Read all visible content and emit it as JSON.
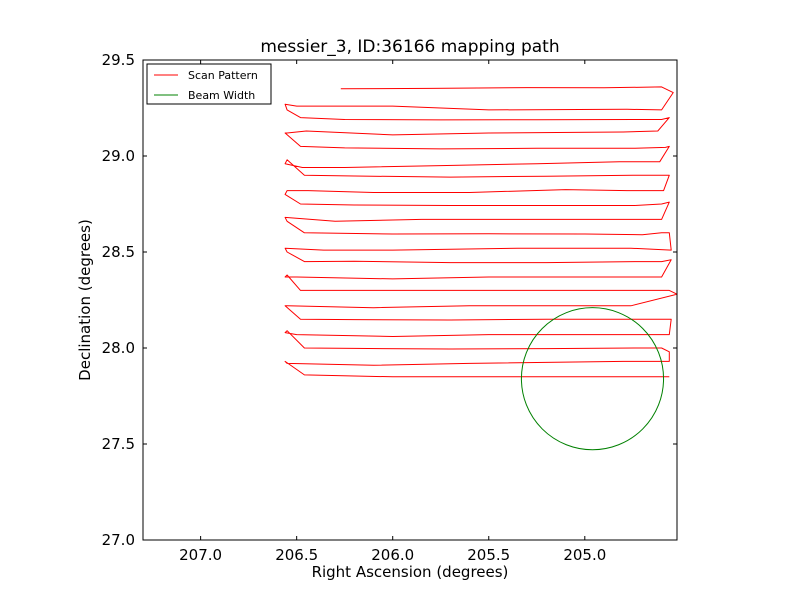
{
  "chart_data": {
    "type": "line",
    "title": "messier_3, ID:36166 mapping path",
    "xlabel": "Right Ascension (degrees)",
    "ylabel": "Declination (degrees)",
    "xlim": [
      207.3,
      204.52
    ],
    "ylim": [
      27.0,
      29.5
    ],
    "x_inverted": true,
    "xticks": [
      207.0,
      206.5,
      206.0,
      205.5,
      205.0
    ],
    "xtick_labels": [
      "207.0",
      "206.5",
      "206.0",
      "205.5",
      "205.0"
    ],
    "yticks": [
      27.0,
      27.5,
      28.0,
      28.5,
      29.0,
      29.5
    ],
    "ytick_labels": [
      "27.0",
      "27.5",
      "28.0",
      "28.5",
      "29.0",
      "29.5"
    ],
    "grid": false,
    "legend": {
      "location": "upper-left",
      "entries": [
        {
          "label": "Scan Pattern",
          "color": "#ff0000"
        },
        {
          "label": "Beam Width",
          "color": "#008000"
        }
      ]
    },
    "series": [
      {
        "name": "Scan Pattern",
        "color": "#ff0000",
        "x": [
          206.27,
          205.8,
          205.3,
          204.9,
          204.6,
          204.54,
          204.6,
          204.78,
          205.5,
          206.0,
          206.5,
          206.56,
          206.55,
          206.48,
          206.25,
          205.75,
          205.25,
          204.75,
          204.6,
          204.56,
          204.62,
          204.8,
          205.5,
          206.0,
          206.45,
          206.55,
          206.56,
          206.48,
          206.25,
          205.75,
          205.25,
          204.75,
          204.58,
          204.56,
          204.61,
          204.82,
          205.25,
          205.75,
          206.25,
          206.47,
          206.56,
          206.55,
          206.46,
          206.2,
          205.7,
          205.2,
          204.75,
          204.62,
          204.56,
          204.59,
          204.78,
          205.1,
          205.6,
          206.1,
          206.44,
          206.55,
          206.56,
          206.48,
          206.2,
          205.7,
          205.2,
          204.74,
          204.6,
          204.56,
          204.6,
          204.8,
          205.35,
          205.85,
          206.3,
          206.56,
          206.55,
          206.46,
          206.0,
          205.5,
          205.0,
          204.7,
          204.6,
          204.56,
          204.55,
          204.76,
          205.35,
          206.0,
          206.36,
          206.56,
          206.55,
          206.46,
          206.2,
          205.7,
          205.2,
          204.74,
          204.6,
          204.55,
          204.6,
          204.8,
          205.5,
          206.0,
          206.5,
          206.56,
          206.55,
          206.48,
          206.2,
          205.7,
          205.2,
          204.74,
          204.6,
          204.56,
          204.52,
          204.76,
          205.1,
          205.6,
          206.1,
          206.55,
          206.56,
          206.48,
          206.2,
          205.7,
          205.2,
          204.74,
          204.58,
          204.55,
          204.56,
          204.8,
          205.5,
          206.0,
          206.5,
          206.56,
          206.55,
          206.46,
          206.2,
          205.7,
          205.2,
          204.74,
          204.6,
          204.56,
          204.56,
          204.8,
          205.6,
          206.1,
          206.55,
          206.56,
          206.46,
          206.0,
          205.5,
          205.0,
          204.6,
          204.56
        ],
        "y": [
          29.35,
          29.352,
          29.356,
          29.355,
          29.36,
          29.33,
          29.24,
          29.243,
          29.24,
          29.26,
          29.26,
          29.27,
          29.24,
          29.2,
          29.19,
          29.188,
          29.189,
          29.19,
          29.19,
          29.2,
          29.13,
          29.125,
          29.12,
          29.11,
          29.13,
          29.12,
          29.12,
          29.05,
          29.042,
          29.037,
          29.04,
          29.04,
          29.045,
          29.05,
          28.97,
          28.97,
          28.96,
          28.95,
          28.94,
          28.94,
          28.96,
          28.98,
          28.9,
          28.896,
          28.89,
          28.895,
          28.9,
          28.9,
          28.9,
          28.82,
          28.82,
          28.825,
          28.81,
          28.81,
          28.82,
          28.82,
          28.8,
          28.75,
          28.745,
          28.742,
          28.742,
          28.742,
          28.75,
          28.76,
          28.67,
          28.67,
          28.67,
          28.67,
          28.66,
          28.68,
          28.66,
          28.6,
          28.594,
          28.595,
          28.594,
          28.59,
          28.6,
          28.6,
          28.51,
          28.52,
          28.52,
          28.51,
          28.51,
          28.52,
          28.5,
          28.45,
          28.452,
          28.445,
          28.445,
          28.45,
          28.45,
          28.46,
          28.37,
          28.37,
          28.37,
          28.36,
          28.37,
          28.37,
          28.38,
          28.3,
          28.3,
          28.3,
          28.3,
          28.3,
          28.3,
          28.3,
          28.28,
          28.22,
          28.22,
          28.22,
          28.21,
          28.22,
          28.22,
          28.15,
          28.148,
          28.146,
          28.15,
          28.15,
          28.15,
          28.15,
          28.07,
          28.07,
          28.07,
          28.06,
          28.07,
          28.08,
          28.09,
          28.0,
          27.998,
          27.995,
          27.997,
          28.0,
          28.0,
          27.98,
          27.93,
          27.93,
          27.92,
          27.91,
          27.92,
          27.93,
          27.86,
          27.85,
          27.85,
          27.85,
          27.85,
          27.85
        ]
      },
      {
        "name": "Beam Width",
        "color": "#008000",
        "center": [
          204.96,
          27.84
        ],
        "radius_deg": 0.37
      }
    ]
  }
}
